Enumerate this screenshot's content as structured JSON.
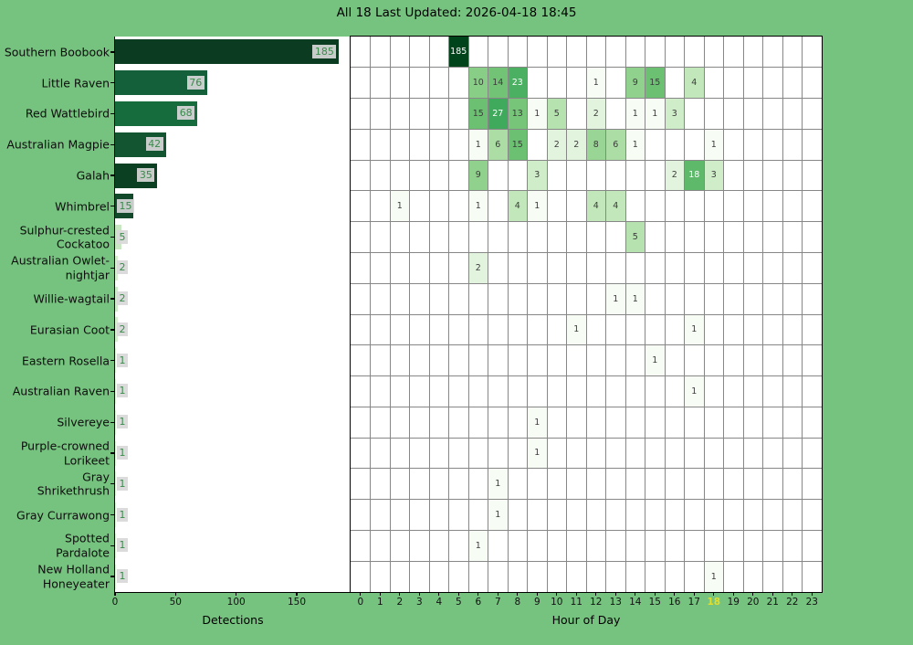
{
  "title": "All 18 Last Updated: 2026-04-18 18:45",
  "colors": {
    "background": "#76c27f",
    "plot_background": "#ffffff",
    "grid_line": "#878787",
    "axis_spine": "#000000",
    "tick_label": "#111111",
    "current_hour_label": "#e0df2e",
    "count_label_text": "#3a8a4c",
    "count_label_box": "#d8d8d8",
    "cell_text_dark": "#3c3c3c",
    "cell_text_light": "#ffffff",
    "greens_colormap": [
      "#f7fcf5",
      "#e5f5e0",
      "#c7e9c0",
      "#a1d99b",
      "#74c476",
      "#41ab5d",
      "#238b45",
      "#006d2c",
      "#00441b"
    ]
  },
  "chart_data": [
    {
      "type": "bar",
      "orientation": "horizontal",
      "xlabel": "Detections",
      "x_ticks": [
        0,
        50,
        100,
        150
      ],
      "xlim": [
        0,
        194
      ],
      "categories": [
        "Southern Boobook",
        "Little Raven",
        "Red Wattlebird",
        "Australian Magpie",
        "Galah",
        "Whimbrel",
        "Sulphur-crested Cockatoo",
        "Australian Owlet-nightjar",
        "Willie-wagtail",
        "Eurasian Coot",
        "Eastern Rosella",
        "Australian Raven",
        "Silvereye",
        "Purple-crowned Lorikeet",
        "Gray Shrikethrush",
        "Gray Currawong",
        "Spotted Pardalote",
        "New Holland Honeyeater"
      ],
      "category_label_lines": [
        [
          "Southern Boobook"
        ],
        [
          "Little Raven"
        ],
        [
          "Red Wattlebird"
        ],
        [
          "Australian Magpie"
        ],
        [
          "Galah"
        ],
        [
          "Whimbrel"
        ],
        [
          "Sulphur-crested",
          "Cockatoo"
        ],
        [
          "Australian Owlet-",
          "nightjar"
        ],
        [
          "Willie-wagtail"
        ],
        [
          "Eurasian Coot"
        ],
        [
          "Eastern Rosella"
        ],
        [
          "Australian Raven"
        ],
        [
          "Silvereye"
        ],
        [
          "Purple-crowned",
          "Lorikeet"
        ],
        [
          "Gray",
          "Shrikethrush"
        ],
        [
          "Gray Currawong"
        ],
        [
          "Spotted",
          "Pardalote"
        ],
        [
          "New Holland",
          "Honeyeater"
        ]
      ],
      "values": [
        185,
        76,
        68,
        42,
        35,
        15,
        5,
        2,
        2,
        2,
        1,
        1,
        1,
        1,
        1,
        1,
        1,
        1
      ],
      "bar_colors": [
        "#0b3c21",
        "#14603a",
        "#166c3d",
        "#135431",
        "#0c4023",
        "#12492b",
        "#c9e7c2",
        "#d8efd2",
        "#d2ebcc",
        "#d8efd2",
        "#e1f3dc",
        "#e1f3dc",
        "#e1f3dc",
        "#e1f3dc",
        "#e1f3dc",
        "#e1f3dc",
        "#e1f3dc",
        "#e1f3dc"
      ]
    },
    {
      "type": "heatmap",
      "xlabel": "Hour of Day",
      "hours": [
        0,
        1,
        2,
        3,
        4,
        5,
        6,
        7,
        8,
        9,
        10,
        11,
        12,
        13,
        14,
        15,
        16,
        17,
        18,
        19,
        20,
        21,
        22,
        23
      ],
      "highlighted_hour": 18,
      "vmin": 1,
      "vmax": 185,
      "scale": "log",
      "colormap": "Greens",
      "white_text_min_value": 18,
      "cells": [
        [
          0,
          5,
          185
        ],
        [
          1,
          6,
          10
        ],
        [
          1,
          7,
          14
        ],
        [
          1,
          8,
          23
        ],
        [
          1,
          12,
          1
        ],
        [
          1,
          14,
          9
        ],
        [
          1,
          15,
          15
        ],
        [
          1,
          17,
          4
        ],
        [
          2,
          6,
          15
        ],
        [
          2,
          7,
          27
        ],
        [
          2,
          8,
          13
        ],
        [
          2,
          9,
          1
        ],
        [
          2,
          10,
          5
        ],
        [
          2,
          12,
          2
        ],
        [
          2,
          14,
          1
        ],
        [
          2,
          15,
          1
        ],
        [
          2,
          16,
          3
        ],
        [
          3,
          6,
          1
        ],
        [
          3,
          7,
          6
        ],
        [
          3,
          8,
          15
        ],
        [
          3,
          10,
          2
        ],
        [
          3,
          11,
          2
        ],
        [
          3,
          12,
          8
        ],
        [
          3,
          13,
          6
        ],
        [
          3,
          14,
          1
        ],
        [
          3,
          18,
          1
        ],
        [
          4,
          6,
          9
        ],
        [
          4,
          9,
          3
        ],
        [
          4,
          16,
          2
        ],
        [
          4,
          17,
          18
        ],
        [
          4,
          18,
          3
        ],
        [
          5,
          2,
          1
        ],
        [
          5,
          6,
          1
        ],
        [
          5,
          8,
          4
        ],
        [
          5,
          9,
          1
        ],
        [
          5,
          12,
          4
        ],
        [
          5,
          13,
          4
        ],
        [
          6,
          14,
          5
        ],
        [
          7,
          6,
          2
        ],
        [
          8,
          13,
          1
        ],
        [
          8,
          14,
          1
        ],
        [
          9,
          11,
          1
        ],
        [
          9,
          17,
          1
        ],
        [
          10,
          15,
          1
        ],
        [
          11,
          17,
          1
        ],
        [
          12,
          9,
          1
        ],
        [
          13,
          9,
          1
        ],
        [
          14,
          7,
          1
        ],
        [
          15,
          7,
          1
        ],
        [
          16,
          6,
          1
        ],
        [
          17,
          18,
          1
        ]
      ]
    }
  ]
}
